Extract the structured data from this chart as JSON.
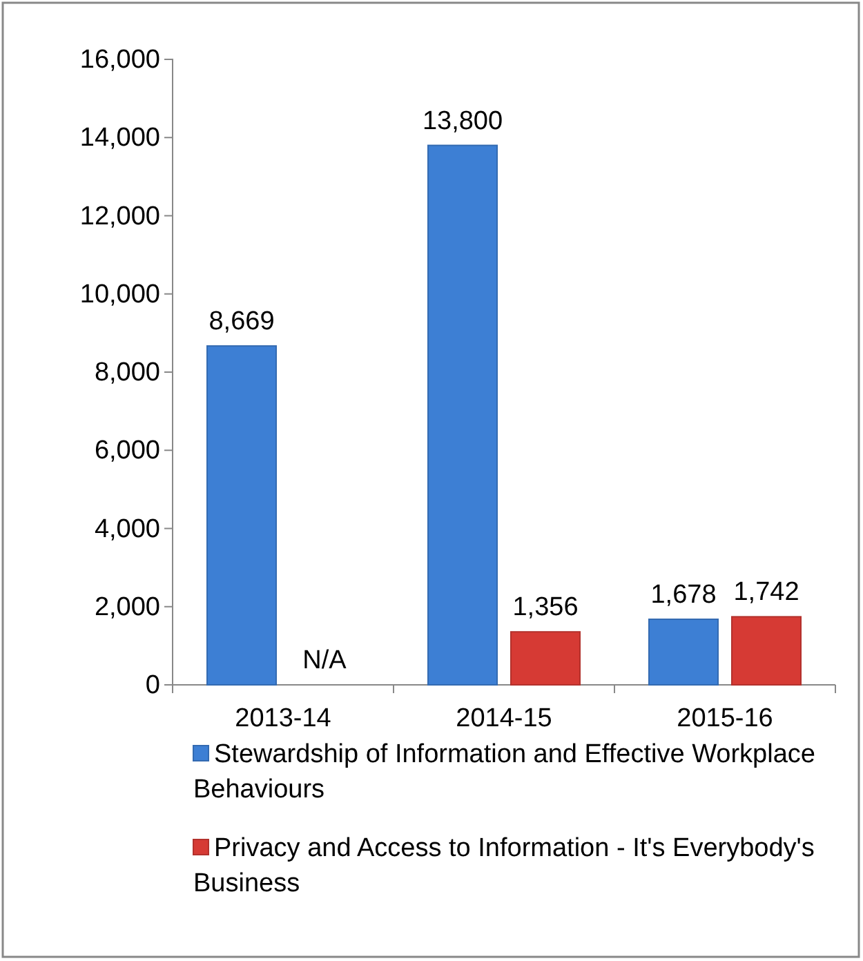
{
  "chart_data": {
    "type": "bar",
    "categories": [
      "2013-14",
      "2014-15",
      "2015-16"
    ],
    "series": [
      {
        "name": "Stewardship of Information and Effective Workplace Behaviours",
        "color": "#3d7fd4",
        "values": [
          8669,
          13800,
          1678
        ],
        "value_labels": [
          "8,669",
          "13,800",
          "1,678"
        ]
      },
      {
        "name": "Privacy and Access to Information - It's Everybody's Business",
        "color": "#d63a34",
        "values": [
          null,
          1356,
          1742
        ],
        "value_labels": [
          "N/A",
          "1,356",
          "1,742"
        ]
      }
    ],
    "ylim": [
      0,
      16000
    ],
    "yticks": [
      {
        "value": 0,
        "label": "0"
      },
      {
        "value": 2000,
        "label": "2,000"
      },
      {
        "value": 4000,
        "label": "4,000"
      },
      {
        "value": 6000,
        "label": "6,000"
      },
      {
        "value": 8000,
        "label": "8,000"
      },
      {
        "value": 10000,
        "label": "10,000"
      },
      {
        "value": 12000,
        "label": "12,000"
      },
      {
        "value": 14000,
        "label": "14,000"
      },
      {
        "value": 16000,
        "label": "16,000"
      }
    ],
    "grid": false,
    "legend": "bottom"
  }
}
